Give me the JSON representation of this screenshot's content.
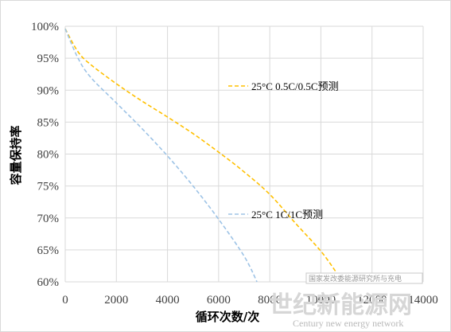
{
  "chart_data": {
    "type": "line",
    "xlabel": "循环次数/次",
    "ylabel": "容量保持率",
    "xlim": [
      0,
      14000
    ],
    "ylim": [
      60,
      100
    ],
    "x_ticks": [
      "0",
      "2000",
      "4000",
      "6000",
      "8000",
      "10000",
      "12000",
      "14000"
    ],
    "y_ticks": [
      "100%",
      "95%",
      "90%",
      "85%",
      "80%",
      "75%",
      "70%",
      "65%",
      "60%"
    ],
    "grid": true,
    "legend": "inline",
    "series": [
      {
        "name": "25°C 0.5C/0.5C预测",
        "color": "#ffc000",
        "dash": "dashed",
        "x": [
          0,
          500,
          1000,
          2000,
          3000,
          4000,
          5000,
          6000,
          7000,
          8000,
          9000,
          10000,
          10600
        ],
        "y": [
          99.6,
          96.0,
          94.0,
          91.0,
          88.3,
          85.8,
          83.2,
          80.3,
          77.2,
          73.7,
          69.2,
          64.8,
          61.5
        ]
      },
      {
        "name": "25°C 1C/1C预测",
        "color": "#9dc3e6",
        "dash": "dashed",
        "x": [
          0,
          500,
          1000,
          2000,
          3000,
          4000,
          5000,
          6000,
          7000,
          7500
        ],
        "y": [
          99.6,
          95.0,
          92.0,
          88.0,
          84.0,
          79.7,
          75.0,
          69.8,
          64.0,
          60.0
        ]
      }
    ],
    "legend_entries": [
      {
        "label": "25°C 0.5C/0.5C预测",
        "series": 0
      },
      {
        "label": "25°C 1C/1C预测",
        "series": 1
      }
    ]
  },
  "watermark": {
    "line1": "国家发改委能源研究所与充电",
    "line2": "世纪新能源网",
    "line3": "Century new energy network"
  }
}
